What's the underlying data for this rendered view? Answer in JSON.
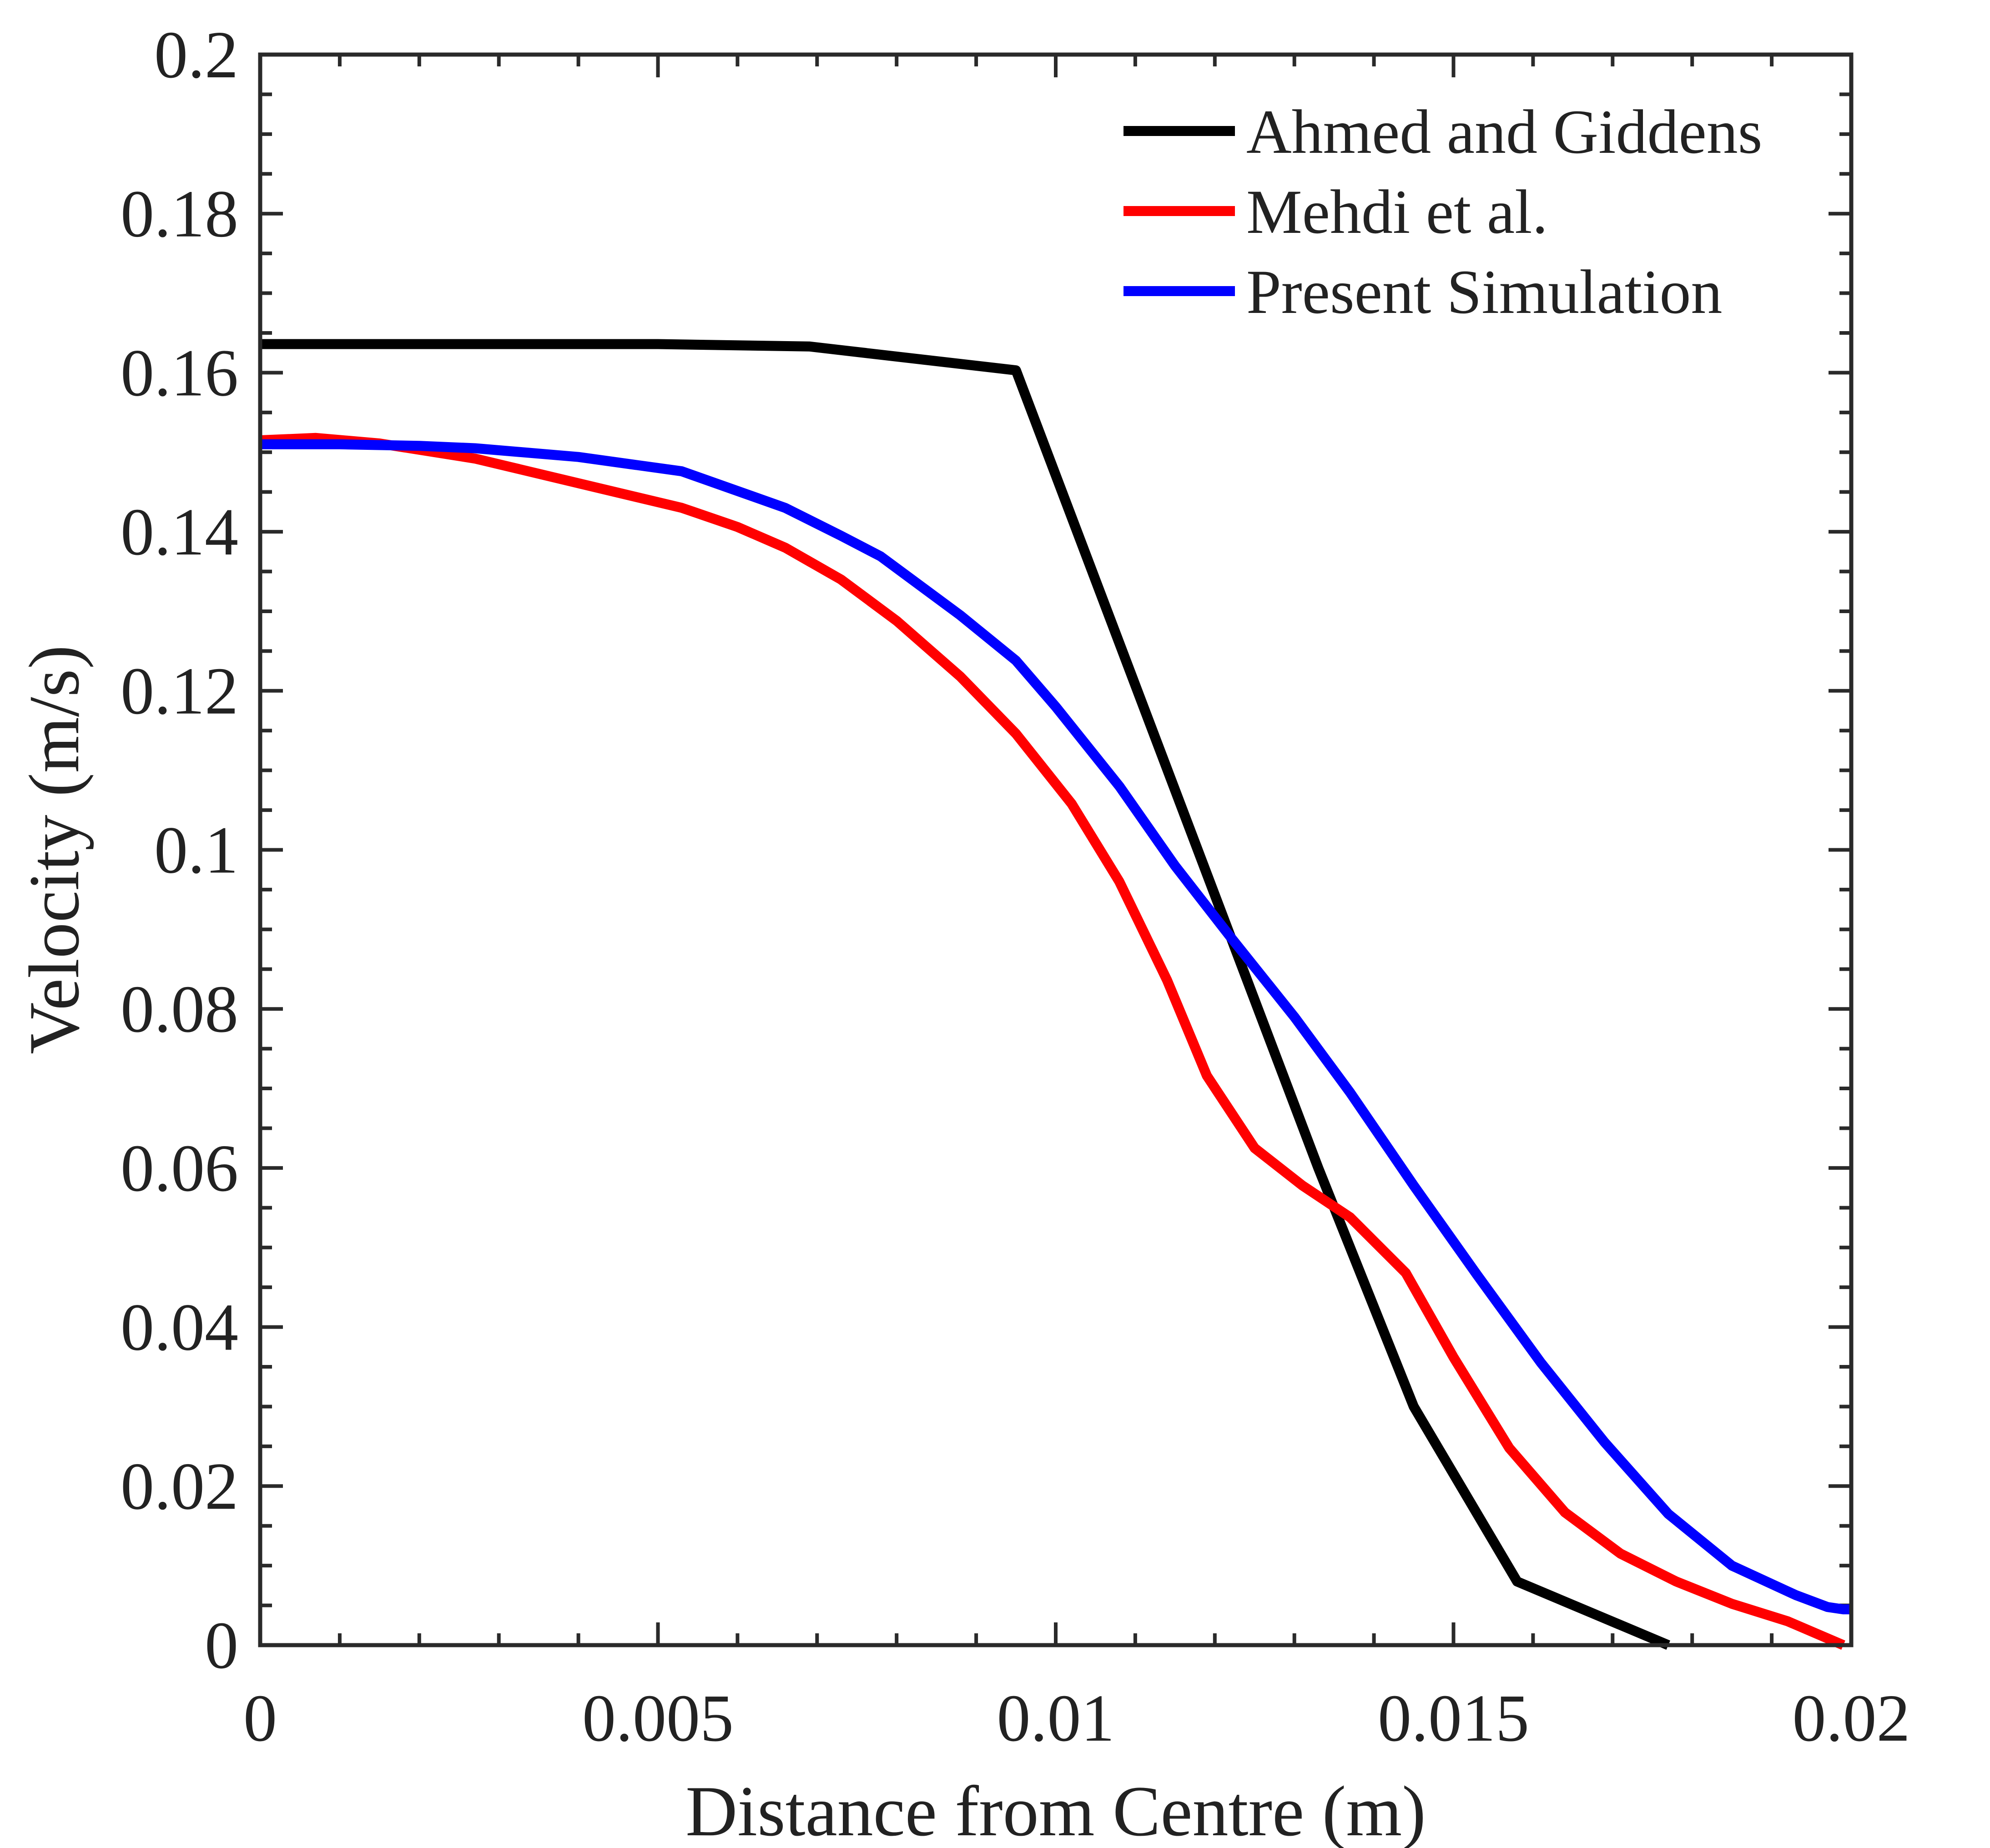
{
  "chart_data": {
    "type": "line",
    "title": "",
    "xlabel": "Distance from Centre (m)",
    "ylabel": "Velocity (m/s)",
    "xlim": [
      0,
      0.02
    ],
    "ylim": [
      0,
      0.2
    ],
    "xticks": [
      0,
      0.005,
      0.01,
      0.015,
      0.02
    ],
    "xtick_labels": [
      "0",
      "0.005",
      "0.01",
      "0.015",
      "0.02"
    ],
    "yticks": [
      0,
      0.02,
      0.04,
      0.06,
      0.08,
      0.1,
      0.12,
      0.14,
      0.16,
      0.18,
      0.2
    ],
    "ytick_labels": [
      "0",
      "0.02",
      "0.04",
      "0.06",
      "0.08",
      "0.1",
      "0.12",
      "0.14",
      "0.16",
      "0.18",
      "0.2"
    ],
    "grid": false,
    "legend_position": "top-right",
    "series": [
      {
        "name": "Ahmed and Giddens",
        "color": "#000000",
        "x": [
          0,
          0.005,
          0.0069,
          0.0095,
          0.0133,
          0.0145,
          0.0158,
          0.0177
        ],
        "y": [
          0.1636,
          0.1636,
          0.1633,
          0.1603,
          0.06,
          0.03,
          0.008,
          0.0
        ]
      },
      {
        "name": "Mehdi et al.",
        "color": "#ff0000",
        "x": [
          0,
          0.0007,
          0.0015,
          0.0027,
          0.004,
          0.0053,
          0.006,
          0.0066,
          0.0073,
          0.008,
          0.0088,
          0.0095,
          0.0102,
          0.0108,
          0.0114,
          0.0119,
          0.0125,
          0.0131,
          0.0137,
          0.0144,
          0.015,
          0.0157,
          0.0164,
          0.0171,
          0.0178,
          0.0185,
          0.0192,
          0.0199
        ],
        "y": [
          0.1515,
          0.1518,
          0.1511,
          0.1492,
          0.1461,
          0.143,
          0.1406,
          0.138,
          0.134,
          0.1288,
          0.1218,
          0.1146,
          0.1058,
          0.096,
          0.0836,
          0.0716,
          0.0625,
          0.0578,
          0.0538,
          0.0468,
          0.0362,
          0.0248,
          0.0167,
          0.0115,
          0.008,
          0.0052,
          0.003,
          0.0
        ]
      },
      {
        "name": "Present Simulation",
        "color": "#0000ff",
        "x": [
          0,
          0.001,
          0.002,
          0.0027,
          0.004,
          0.0053,
          0.0066,
          0.0073,
          0.0078,
          0.0088,
          0.0095,
          0.01,
          0.0108,
          0.0115,
          0.0122,
          0.013,
          0.0137,
          0.0145,
          0.0153,
          0.0161,
          0.0169,
          0.0177,
          0.0185,
          0.0193,
          0.0197,
          0.0199,
          0.02
        ],
        "y": [
          0.151,
          0.151,
          0.1508,
          0.1505,
          0.1494,
          0.1476,
          0.143,
          0.1395,
          0.1369,
          0.1295,
          0.1238,
          0.118,
          0.108,
          0.098,
          0.089,
          0.079,
          0.0695,
          0.0578,
          0.0465,
          0.0355,
          0.0255,
          0.0165,
          0.01,
          0.0063,
          0.0048,
          0.0045,
          0.0045
        ]
      }
    ]
  }
}
